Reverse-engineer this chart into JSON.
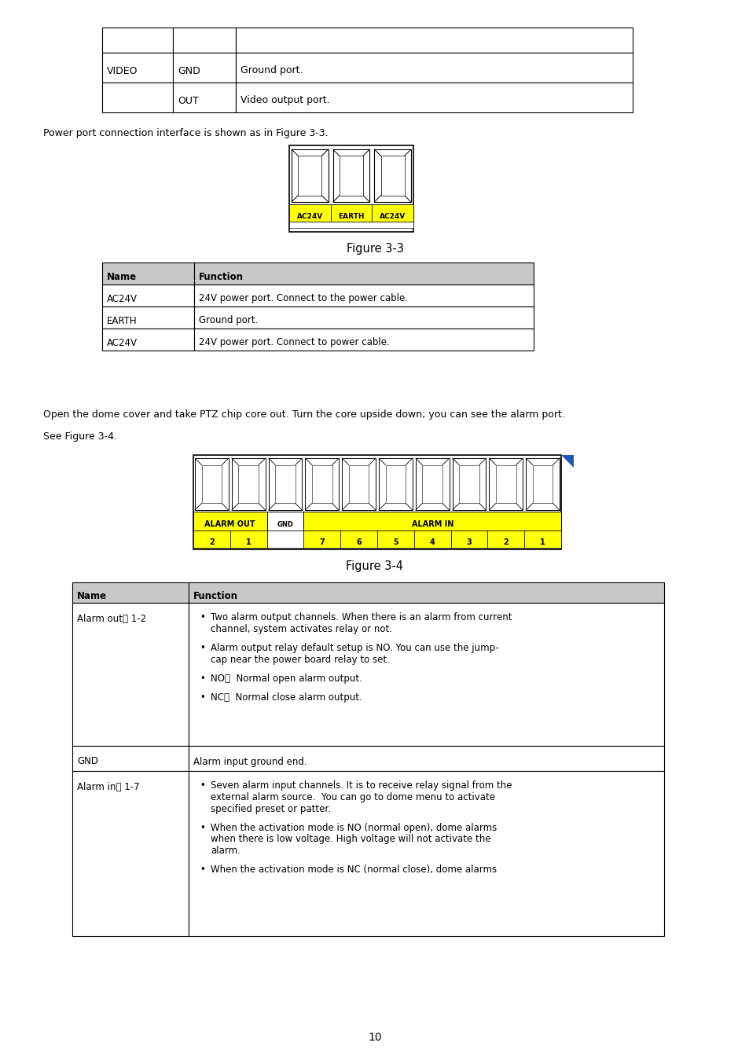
{
  "bg_color": "#ffffff",
  "page_number": "10",
  "power_text": "Power port connection interface is shown as in Figure 3-3.",
  "figure3_caption": "Figure 3-3",
  "alarm_text_line1": "Open the dome cover and take PTZ chip core out. Turn the core upside down; you can see the alarm port.",
  "alarm_text_line2": "See Figure 3-4.",
  "figure4_caption": "Figure 3-4",
  "connector_3_labels": [
    "AC24V",
    "EARTH",
    "AC24V"
  ],
  "connector_yellow": "#ffff00",
  "top_table_rows": [
    [
      "",
      "",
      ""
    ],
    [
      "VIDEO",
      "GND",
      "Ground port."
    ],
    [
      "",
      "OUT",
      "Video output port."
    ]
  ],
  "fig3_rows": [
    [
      "Name",
      "Function",
      true
    ],
    [
      "AC24V",
      "24V power port. Connect to the power cable.",
      false
    ],
    [
      "EARTH",
      "Ground port.",
      false
    ],
    [
      "AC24V",
      "24V power port. Connect to power cable.",
      false
    ]
  ],
  "fig4_header": [
    "Name",
    "Function"
  ],
  "alarm_out_name": "Alarm out： 1-2",
  "alarm_out_bullets": [
    "Two alarm output channels. When there is an alarm from current\nchannel, system activates relay or not.",
    "Alarm output relay default setup is NO. You can use the jump-\ncap near the power board relay to set.",
    "NO：  Normal open alarm output.",
    "NC：  Normal close alarm output."
  ],
  "gnd_name": "GND",
  "gnd_text": "Alarm input ground end.",
  "alarm_in_name": "Alarm in： 1-7",
  "alarm_in_bullets": [
    "Seven alarm input channels. It is to receive relay signal from the\nexternal alarm source.  You can go to dome menu to activate\nspecified preset or patter.",
    "When the activation mode is NO (normal open), dome alarms\nwhen there is low voltage. High voltage will not activate the\nalarm.",
    "When the activation mode is NC (normal close), dome alarms"
  ],
  "nums_left": [
    "2",
    "1"
  ],
  "nums_right": [
    "7",
    "6",
    "5",
    "4",
    "3",
    "2",
    "1"
  ]
}
